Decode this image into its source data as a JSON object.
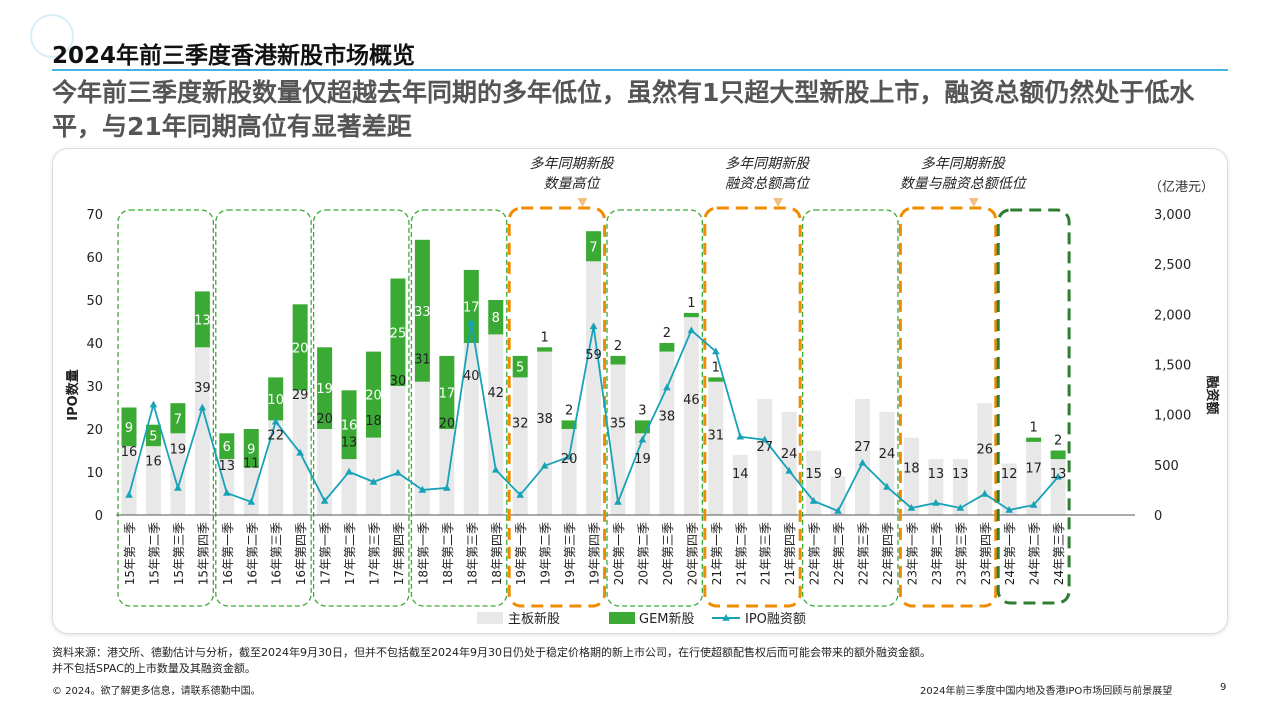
{
  "page": {
    "title": "2024年前三季度香港新股市场概览",
    "subtitle": "今年前三季度新股数量仅超越去年同期的多年低位，虽然有1只超大型新股上市，融资总额仍然处于低水平，与21年同期高位有显著差距",
    "source_line1": "资料来源：港交所、德勤估计与分析，截至2024年9月30日，但并不包括截至2024年9月30日仍处于稳定价格期的新上市公司，在行使超额配售权后而可能会带来的额外融资金额。",
    "source_line2": "并不包括SPAC的上市数量及其融资金额。",
    "copyright": "© 2024。欲了解更多信息，请联系德勤中国。",
    "footer_title": "2024年前三季度中国内地及香港IPO市场回顾与前景展望",
    "page_number": "9"
  },
  "colors": {
    "main_board": "#e8e8e8",
    "gem": "#3aaa35",
    "ipo_line": "#17a2b8",
    "dashed_green": "#3aaa35",
    "dashed_orange": "#ef8c00",
    "dashed_dark_green": "#2e7d32",
    "title_rule": "#43b4e4"
  },
  "chart_data": {
    "type": "bar",
    "stacked": true,
    "categories": [
      "15年第一季",
      "15年第二季",
      "15年第三季",
      "15年第四季",
      "16年第一季",
      "16年第二季",
      "16年第三季",
      "16年第四季",
      "17年第一季",
      "17年第二季",
      "17年第三季",
      "17年第四季",
      "18年第一季",
      "18年第二季",
      "18年第三季",
      "18年第四季",
      "19年第一季",
      "19年第二季",
      "19年第三季",
      "19年第四季",
      "20年第一季",
      "20年第二季",
      "20年第三季",
      "20年第四季",
      "21年第一季",
      "21年第二季",
      "21年第三季",
      "21年第四季",
      "22年第一季",
      "22年第二季",
      "22年第三季",
      "22年第四季",
      "23年第一季",
      "23年第二季",
      "23年第三季",
      "23年第四季",
      "24年第一季",
      "24年第二季",
      "24年第三季"
    ],
    "series": [
      {
        "name": "主板新股",
        "axis": "left",
        "values": [
          16,
          16,
          19,
          39,
          13,
          11,
          22,
          29,
          20,
          13,
          18,
          30,
          31,
          20,
          40,
          42,
          32,
          38,
          20,
          59,
          35,
          19,
          38,
          46,
          31,
          14,
          27,
          24,
          15,
          9,
          27,
          24,
          18,
          13,
          13,
          26,
          12,
          17,
          13
        ]
      },
      {
        "name": "GEM新股",
        "axis": "left",
        "values": [
          9,
          5,
          7,
          13,
          6,
          9,
          10,
          20,
          19,
          16,
          20,
          25,
          33,
          17,
          17,
          8,
          5,
          1,
          2,
          7,
          2,
          3,
          2,
          1,
          1,
          0,
          0,
          0,
          0,
          0,
          0,
          0,
          0,
          0,
          0,
          0,
          0,
          1,
          2
        ]
      },
      {
        "name": "IPO融资额",
        "axis": "right",
        "type": "line",
        "values": [
          200,
          1100,
          270,
          1070,
          220,
          130,
          930,
          620,
          140,
          430,
          330,
          420,
          250,
          270,
          1920,
          450,
          200,
          490,
          580,
          1880,
          130,
          750,
          1270,
          1840,
          1630,
          780,
          750,
          440,
          140,
          40,
          520,
          280,
          70,
          120,
          70,
          210,
          50,
          100,
          380
        ]
      }
    ],
    "y_left": {
      "label": "IPO数量",
      "min": 0,
      "max": 70,
      "ticks": [
        "0",
        "10",
        "20",
        "30",
        "40",
        "50",
        "60",
        "70"
      ]
    },
    "y_right": {
      "label": "融资额",
      "unit": "（亿港元）",
      "min": 0,
      "max": 3000,
      "ticks": [
        "0",
        "500",
        "1,000",
        "1,500",
        "2,000",
        "2,500",
        "3,000"
      ]
    },
    "annotations": [
      {
        "line1": "多年同期新股",
        "line2": "数量高位",
        "target_index": 19
      },
      {
        "line1": "多年同期新股",
        "line2": "融资总额高位",
        "target_index": 27
      },
      {
        "line1": "多年同期新股",
        "line2": "数量与融资总额低位",
        "target_index": 35
      }
    ],
    "groups": [
      {
        "start": 0,
        "end": 3,
        "style": "green"
      },
      {
        "start": 4,
        "end": 7,
        "style": "green"
      },
      {
        "start": 8,
        "end": 11,
        "style": "green"
      },
      {
        "start": 12,
        "end": 15,
        "style": "green"
      },
      {
        "start": 16,
        "end": 19,
        "style": "orange"
      },
      {
        "start": 20,
        "end": 23,
        "style": "green"
      },
      {
        "start": 24,
        "end": 27,
        "style": "orange"
      },
      {
        "start": 28,
        "end": 31,
        "style": "green"
      },
      {
        "start": 32,
        "end": 35,
        "style": "orange"
      },
      {
        "start": 36,
        "end": 38,
        "style": "dark-green"
      }
    ],
    "legend": {
      "placement": "bottom",
      "items": [
        "主板新股",
        "GEM新股",
        "IPO融资额"
      ]
    },
    "grid": false
  }
}
